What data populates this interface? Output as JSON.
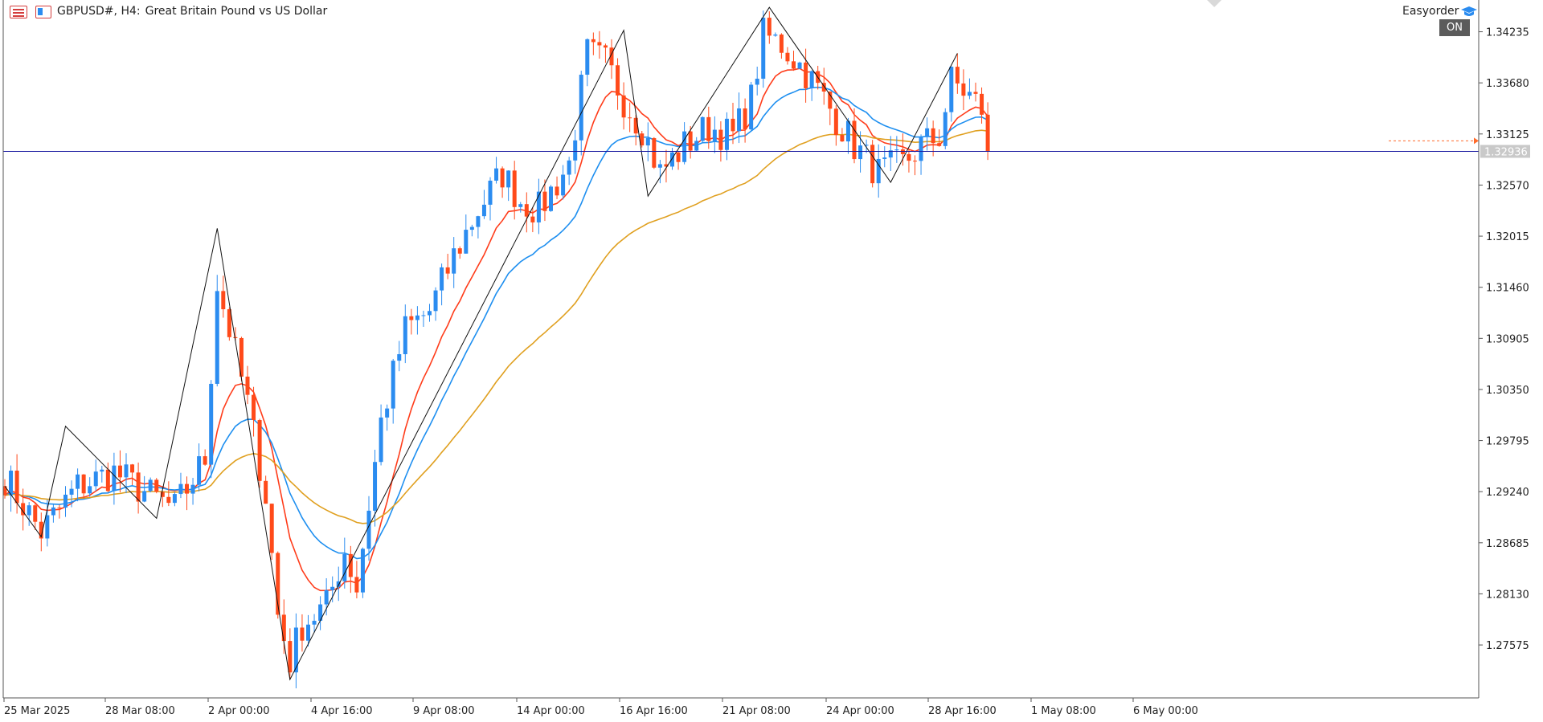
{
  "header": {
    "symbol": "GBPUSD#, H4:",
    "description": "Great Britain Pound vs US Dollar"
  },
  "expert": {
    "name": "Easyorder",
    "status": "ON"
  },
  "icons": {
    "menu": "menu-icon",
    "chart": "chart-type-icon",
    "expert": "graduation-cap-icon"
  },
  "colors": {
    "bull": "#2b8cf0",
    "bear": "#ff4a1a",
    "ma_fast": "#ff3c1a",
    "ma_mid": "#1e8ff0",
    "ma_slow": "#e0a020",
    "zigzag": "#111111",
    "current_price_line": "#1a1aa0",
    "ask_line": "#ff6a2a"
  },
  "chart_data": {
    "type": "candlestick",
    "symbol": "GBPUSD#",
    "timeframe": "H4",
    "title": "Great Britain Pound vs US Dollar",
    "ylim": [
      1.27,
      1.3458
    ],
    "y_ticks": [
      "1.34235",
      "1.33680",
      "1.33125",
      "1.32570",
      "1.32015",
      "1.31460",
      "1.30905",
      "1.30350",
      "1.29795",
      "1.29240",
      "1.28685",
      "1.28130",
      "1.27575"
    ],
    "x_ticks": [
      "25 Mar 2025",
      "28 Mar 08:00",
      "2 Apr 00:00",
      "4 Apr 16:00",
      "9 Apr 08:00",
      "14 Apr 00:00",
      "16 Apr 16:00",
      "21 Apr 08:00",
      "24 Apr 00:00",
      "28 Apr 16:00",
      "1 May 08:00",
      "6 May 00:00"
    ],
    "current_price": 1.32936,
    "current_price_label": "1.32936",
    "ask_price": 1.3305,
    "bar_count": 200,
    "waypoints": [
      {
        "bar": 0,
        "close": 1.294
      },
      {
        "bar": 6,
        "close": 1.288
      },
      {
        "bar": 12,
        "close": 1.293
      },
      {
        "bar": 18,
        "close": 1.2945
      },
      {
        "bar": 24,
        "close": 1.292
      },
      {
        "bar": 28,
        "close": 1.2905
      },
      {
        "bar": 33,
        "close": 1.296
      },
      {
        "bar": 35,
        "close": 1.315
      },
      {
        "bar": 37,
        "close": 1.31
      },
      {
        "bar": 40,
        "close": 1.302
      },
      {
        "bar": 43,
        "close": 1.292
      },
      {
        "bar": 45,
        "close": 1.279
      },
      {
        "bar": 47,
        "close": 1.274
      },
      {
        "bar": 49,
        "close": 1.278
      },
      {
        "bar": 53,
        "close": 1.28
      },
      {
        "bar": 56,
        "close": 1.286
      },
      {
        "bar": 58,
        "close": 1.282
      },
      {
        "bar": 62,
        "close": 1.3
      },
      {
        "bar": 66,
        "close": 1.31
      },
      {
        "bar": 70,
        "close": 1.312
      },
      {
        "bar": 74,
        "close": 1.318
      },
      {
        "bar": 78,
        "close": 1.323
      },
      {
        "bar": 82,
        "close": 1.327
      },
      {
        "bar": 85,
        "close": 1.324
      },
      {
        "bar": 88,
        "close": 1.323
      },
      {
        "bar": 93,
        "close": 1.328
      },
      {
        "bar": 96,
        "close": 1.34
      },
      {
        "bar": 99,
        "close": 1.339
      },
      {
        "bar": 102,
        "close": 1.335
      },
      {
        "bar": 105,
        "close": 1.332
      },
      {
        "bar": 108,
        "close": 1.327
      },
      {
        "bar": 112,
        "close": 1.33
      },
      {
        "bar": 116,
        "close": 1.332
      },
      {
        "bar": 120,
        "close": 1.331
      },
      {
        "bar": 123,
        "close": 1.335
      },
      {
        "bar": 125,
        "close": 1.342
      },
      {
        "bar": 128,
        "close": 1.341
      },
      {
        "bar": 132,
        "close": 1.338
      },
      {
        "bar": 136,
        "close": 1.334
      },
      {
        "bar": 140,
        "close": 1.33
      },
      {
        "bar": 144,
        "close": 1.327
      },
      {
        "bar": 148,
        "close": 1.328
      },
      {
        "bar": 151,
        "close": 1.33
      },
      {
        "bar": 154,
        "close": 1.331
      },
      {
        "bar": 156,
        "close": 1.337
      },
      {
        "bar": 158,
        "close": 1.336
      },
      {
        "bar": 161,
        "close": 1.334
      },
      {
        "bar": 162,
        "close": 1.3294
      }
    ],
    "zigzag": [
      {
        "bar": 0,
        "price": 1.293
      },
      {
        "bar": 6,
        "price": 1.2875
      },
      {
        "bar": 10,
        "price": 1.2995
      },
      {
        "bar": 25,
        "price": 1.2895
      },
      {
        "bar": 35,
        "price": 1.321
      },
      {
        "bar": 47,
        "price": 1.272
      },
      {
        "bar": 102,
        "price": 1.3425
      },
      {
        "bar": 106,
        "price": 1.3245
      },
      {
        "bar": 126,
        "price": 1.345
      },
      {
        "bar": 146,
        "price": 1.326
      },
      {
        "bar": 157,
        "price": 1.34
      }
    ],
    "moving_averages": [
      {
        "period": 10,
        "color": "#ff3c1a"
      },
      {
        "period": 21,
        "color": "#1e8ff0"
      },
      {
        "period": 50,
        "color": "#e0a020"
      }
    ]
  }
}
